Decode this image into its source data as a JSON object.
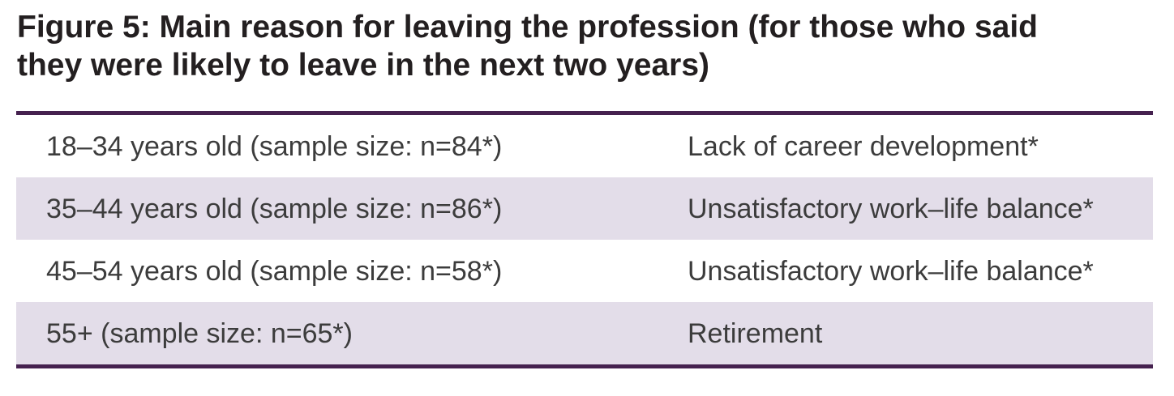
{
  "figure": {
    "title": "Figure 5: Main reason for leaving the profession (for those who said they were likely to leave in the next two years)"
  },
  "table": {
    "rows": [
      {
        "group": "18–34 years old (sample size: n=84*)",
        "reason": "Lack of career development*"
      },
      {
        "group": "35–44 years old (sample size: n=86*)",
        "reason": "Unsatisfactory work–life balance*"
      },
      {
        "group": "45–54 years old (sample size: n=58*)",
        "reason": "Unsatisfactory work–life balance*"
      },
      {
        "group": "55+ (sample size: n=65*)",
        "reason": "Retirement"
      }
    ]
  },
  "colors": {
    "rule_purple": "#45214f",
    "row_shade_lavender": "#e3dde9",
    "title_text": "#231f20",
    "body_text": "#3c3c3c",
    "background": "#ffffff"
  }
}
